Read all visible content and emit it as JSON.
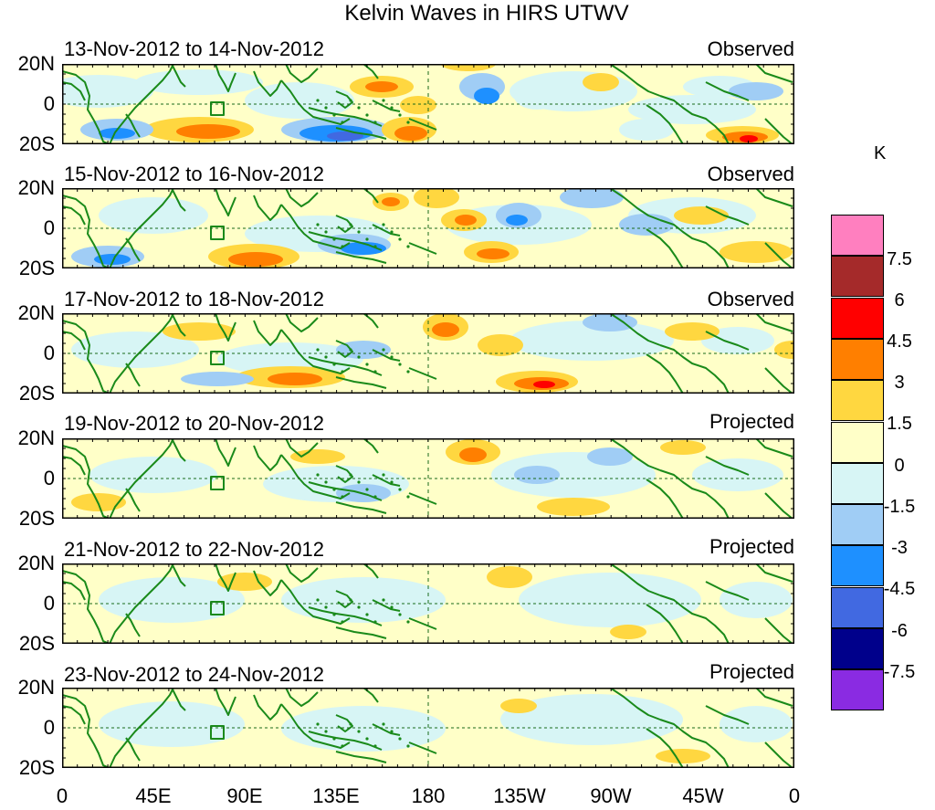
{
  "title": "Kelvin Waves in HIRS UTWV",
  "panels": [
    {
      "date_range": "13-Nov-2012 to 14-Nov-2012",
      "type": "Observed"
    },
    {
      "date_range": "15-Nov-2012 to 16-Nov-2012",
      "type": "Observed"
    },
    {
      "date_range": "17-Nov-2012 to 18-Nov-2012",
      "type": "Observed"
    },
    {
      "date_range": "19-Nov-2012 to 20-Nov-2012",
      "type": "Projected"
    },
    {
      "date_range": "21-Nov-2012 to 22-Nov-2012",
      "type": "Projected"
    },
    {
      "date_range": "23-Nov-2012 to 24-Nov-2012",
      "type": "Projected"
    }
  ],
  "y_axis": {
    "labels": [
      "20N",
      "0",
      "20S"
    ]
  },
  "x_axis": {
    "labels": [
      "0",
      "45E",
      "90E",
      "135E",
      "180",
      "135W",
      "90W",
      "45W",
      "0"
    ]
  },
  "colorbar": {
    "unit": "K",
    "labels": [
      "7.5",
      "6",
      "4.5",
      "3",
      "1.5",
      "0",
      "-1.5",
      "-3",
      "-4.5",
      "-6",
      "-7.5"
    ],
    "colors": [
      "#ff7fbf",
      "#a52a2a",
      "#ff0000",
      "#ff7f00",
      "#ffd740",
      "#ffffc8",
      "#d7f5f5",
      "#a0cdf5",
      "#1e90ff",
      "#4169e1",
      "#00008b",
      "#8a2be2"
    ]
  },
  "colors": {
    "coastline": "#1a8a1a",
    "background": "#ffffc8",
    "reference_line": "#1a8a1a"
  }
}
